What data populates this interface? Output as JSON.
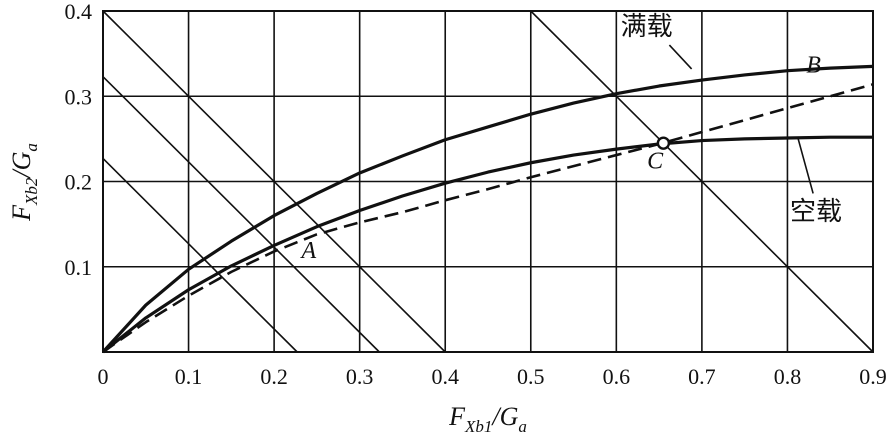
{
  "chart_data": {
    "type": "line",
    "xlabel": {
      "main": "F",
      "sub": "Xb1",
      "tail": "/G",
      "tail_sub": "a"
    },
    "ylabel": {
      "main": "F",
      "sub": "Xb2",
      "tail": "/G",
      "tail_sub": "a"
    },
    "xlim": [
      0,
      0.9
    ],
    "ylim": [
      0,
      0.4
    ],
    "x_ticks": [
      0,
      0.1,
      0.2,
      0.3,
      0.4,
      0.5,
      0.6,
      0.7,
      0.8,
      0.9
    ],
    "x_tick_labels": [
      "0",
      "0.1",
      "0.2",
      "0.3",
      "0.4",
      "0.5",
      "0.6",
      "0.7",
      "0.8",
      "0.9"
    ],
    "y_ticks": [
      0.1,
      0.2,
      0.3,
      0.4
    ],
    "y_tick_labels": [
      "0.1",
      "0.2",
      "0.3",
      "0.4"
    ],
    "grid": true,
    "series": [
      {
        "name": "满载",
        "style": "solid-thick",
        "x": [
          0,
          0.05,
          0.1,
          0.15,
          0.2,
          0.25,
          0.3,
          0.35,
          0.4,
          0.45,
          0.5,
          0.55,
          0.6,
          0.65,
          0.7,
          0.75,
          0.8,
          0.85,
          0.9
        ],
        "y": [
          0,
          0.055,
          0.097,
          0.13,
          0.16,
          0.186,
          0.21,
          0.23,
          0.249,
          0.264,
          0.279,
          0.292,
          0.303,
          0.312,
          0.319,
          0.325,
          0.33,
          0.333,
          0.335
        ]
      },
      {
        "name": "空载",
        "style": "solid-thick",
        "x": [
          0,
          0.05,
          0.1,
          0.15,
          0.2,
          0.25,
          0.3,
          0.35,
          0.4,
          0.45,
          0.5,
          0.55,
          0.6,
          0.65,
          0.7,
          0.75,
          0.8,
          0.85,
          0.9
        ],
        "y": [
          0,
          0.04,
          0.073,
          0.101,
          0.125,
          0.147,
          0.166,
          0.183,
          0.198,
          0.211,
          0.222,
          0.231,
          0.238,
          0.244,
          0.248,
          0.25,
          0.251,
          0.252,
          0.252
        ]
      },
      {
        "name": "",
        "style": "dashed",
        "x": [
          0,
          0.05,
          0.1,
          0.15,
          0.2,
          0.25,
          0.3,
          0.35,
          0.4,
          0.45,
          0.5,
          0.55,
          0.6,
          0.65,
          0.7,
          0.75,
          0.8,
          0.85,
          0.9
        ],
        "y": [
          0,
          0.035,
          0.066,
          0.094,
          0.118,
          0.138,
          0.152,
          0.164,
          0.178,
          0.191,
          0.205,
          0.218,
          0.231,
          0.244,
          0.258,
          0.272,
          0.286,
          0.3,
          0.314
        ]
      }
    ],
    "reference_lines": [
      {
        "x0": 0,
        "y0": 0.227,
        "x1": 0.227,
        "y1": 0
      },
      {
        "x0": 0,
        "y0": 0.323,
        "x1": 0.323,
        "y1": 0
      },
      {
        "x0": 0,
        "y0": 0.4,
        "x1": 0.4,
        "y1": 0
      },
      {
        "x0": 0.5,
        "y0": 0.4,
        "x1": 0.9,
        "y1": 0
      }
    ],
    "series_labels": [
      {
        "text": "满载",
        "x": 0.605,
        "y": 0.372,
        "leader": [
          0.688,
          0.332,
          0.662,
          0.36
        ]
      },
      {
        "text": "空载",
        "x": 0.803,
        "y": 0.155,
        "leader": [
          0.812,
          0.252,
          0.83,
          0.186
        ]
      }
    ],
    "point_labels": [
      {
        "text": "A",
        "x": 0.232,
        "y": 0.11
      },
      {
        "text": "B",
        "x": 0.822,
        "y": 0.328
      },
      {
        "text": "C",
        "x": 0.636,
        "y": 0.215
      }
    ],
    "marked_point": {
      "x": 0.655,
      "y": 0.245
    }
  }
}
